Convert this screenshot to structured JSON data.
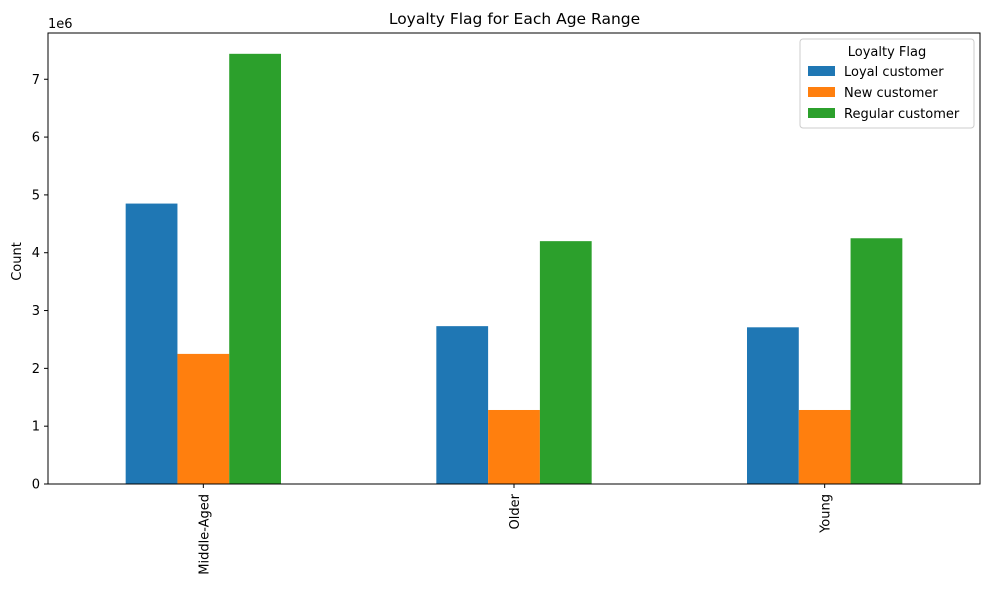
{
  "chart_data": {
    "type": "bar",
    "title": "Loyalty Flag for Each Age Range",
    "xlabel": "",
    "ylabel": "Count",
    "y_offset_label": "1e6",
    "y_scale": 1000000,
    "ylim": [
      0,
      7.8
    ],
    "yticks": [
      0,
      1,
      2,
      3,
      4,
      5,
      6,
      7
    ],
    "categories": [
      "Middle-Aged",
      "Older",
      "Young"
    ],
    "series": [
      {
        "name": "Loyal customer",
        "color": "#1f77b4",
        "values": [
          4850000,
          2730000,
          2710000
        ]
      },
      {
        "name": "New customer",
        "color": "#ff7f0e",
        "values": [
          2250000,
          1280000,
          1280000
        ]
      },
      {
        "name": "Regular customer",
        "color": "#2ca02c",
        "values": [
          7440000,
          4200000,
          4250000
        ]
      }
    ],
    "legend": {
      "title": "Loyalty Flag",
      "placement": "top-right"
    },
    "grid": false
  }
}
